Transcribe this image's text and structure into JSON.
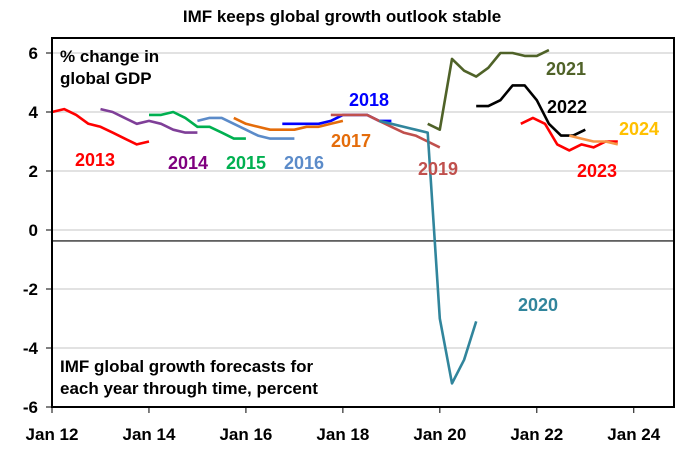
{
  "chart_data": {
    "type": "line",
    "title": "IMF keeps global growth outlook stable",
    "ylabel": "% change in global GDP",
    "ylabel_lines": [
      "% change in",
      "global GDP"
    ],
    "note_lines": [
      "IMF global growth forecasts for",
      "each year through time, percent"
    ],
    "xlim": [
      2012,
      2024.83
    ],
    "ylim": [
      -6,
      6.5
    ],
    "yticks": [
      6,
      4,
      2,
      0,
      -2,
      -4,
      -6
    ],
    "ytick_labels": [
      "6",
      "4",
      "2",
      "0",
      "-2",
      "-4",
      "-6"
    ],
    "xticks": [
      2012,
      2014,
      2016,
      2018,
      2020,
      2022,
      2024
    ],
    "xtick_labels": [
      "Jan 12",
      "Jan 14",
      "Jan 16",
      "Jan 18",
      "Jan 20",
      "Jan 22",
      "Jan 24"
    ],
    "grid": true,
    "reference_line": -0.37,
    "series": [
      {
        "name": "2013",
        "color": "#FF0000",
        "label_color": "#FF0000",
        "start": 2012.0,
        "values": [
          4.0,
          4.1,
          3.9,
          3.6,
          3.5,
          3.3,
          3.1,
          2.9,
          3.0
        ]
      },
      {
        "name": "2014",
        "color": "#7F3F98",
        "label_color": "#7F007F",
        "start": 2013.0,
        "values": [
          4.1,
          4.0,
          3.8,
          3.6,
          3.7,
          3.6,
          3.4,
          3.3,
          3.3
        ]
      },
      {
        "name": "2015",
        "color": "#00B050",
        "label_color": "#00B050",
        "start": 2014.0,
        "values": [
          3.9,
          3.9,
          4.0,
          3.8,
          3.5,
          3.5,
          3.3,
          3.1,
          3.1
        ]
      },
      {
        "name": "2016",
        "color": "#5B8BC9",
        "label_color": "#5B8BC9",
        "start": 2015.0,
        "values": [
          3.7,
          3.8,
          3.8,
          3.6,
          3.4,
          3.2,
          3.1,
          3.1,
          3.1
        ]
      },
      {
        "name": "2017",
        "color": "#E46C0A",
        "label_color": "#E46C0A",
        "start": 2015.75,
        "values": [
          3.8,
          3.6,
          3.5,
          3.4,
          3.4,
          3.4,
          3.5,
          3.5,
          3.6,
          3.7
        ]
      },
      {
        "name": "2018",
        "color": "#0000FF",
        "label_color": "#0000FF",
        "start": 2016.75,
        "values": [
          3.6,
          3.6,
          3.6,
          3.6,
          3.7,
          3.9,
          3.9,
          3.9,
          3.7,
          3.7
        ]
      },
      {
        "name": "2019",
        "color": "#C0504D",
        "label_color": "#C0504D",
        "start": 2017.75,
        "values": [
          3.9,
          3.9,
          3.9,
          3.9,
          3.7,
          3.5,
          3.3,
          3.2,
          3.0,
          2.8
        ]
      },
      {
        "name": "2020",
        "color": "#31859C",
        "label_color": "#31859C",
        "start": 2018.75,
        "values": [
          3.7,
          3.6,
          3.5,
          3.4,
          3.3,
          -3.0,
          -5.2,
          -4.4,
          -3.1
        ]
      },
      {
        "name": "2021",
        "color": "#4F6228",
        "label_color": "#4F6228",
        "start": 2019.75,
        "values": [
          3.6,
          3.4,
          5.8,
          5.4,
          5.2,
          5.5,
          6.0,
          6.0,
          5.9,
          5.9,
          6.1
        ]
      },
      {
        "name": "2022",
        "color": "#000000",
        "label_color": "#000000",
        "start": 2020.75,
        "values": [
          4.2,
          4.2,
          4.4,
          4.9,
          4.9,
          4.4,
          3.6,
          3.2,
          3.2,
          3.4
        ]
      },
      {
        "name": "2023",
        "color": "#FF0000",
        "label_color": "#FF0000",
        "start": 2021.67,
        "values": [
          3.6,
          3.8,
          3.6,
          2.9,
          2.7,
          2.9,
          2.8,
          3.0,
          3.0
        ]
      },
      {
        "name": "2024",
        "color": "#F79646",
        "label_color": "#FFC000",
        "start": 2022.67,
        "values": [
          3.2,
          3.1,
          3.0,
          3.0,
          2.9
        ]
      }
    ],
    "step": 0.25
  }
}
